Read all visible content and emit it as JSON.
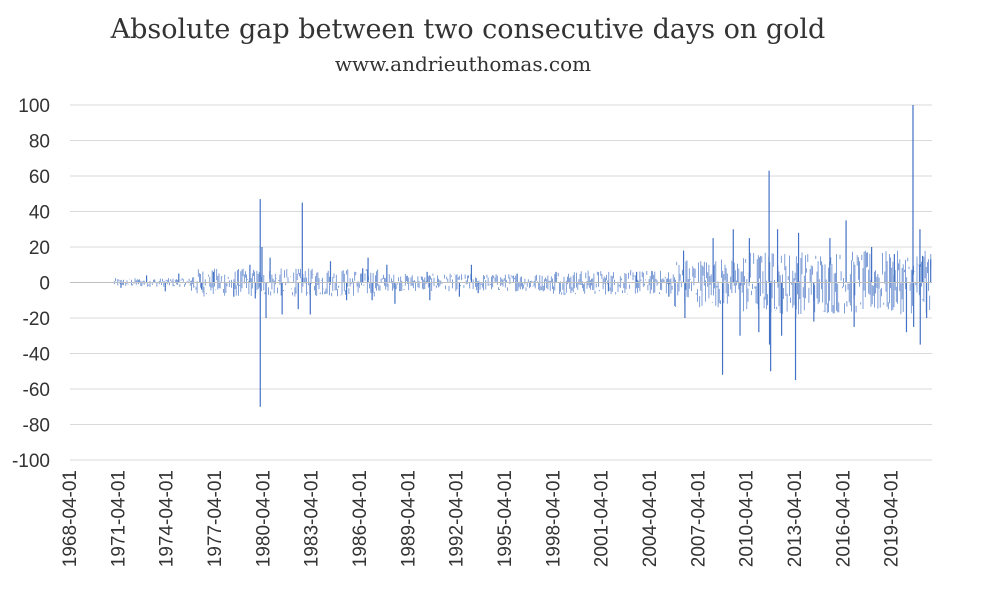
{
  "chart_data": {
    "type": "line",
    "title": "Absolute gap between two consecutive days on gold",
    "subtitle": "www.andrieuthomas.com",
    "xlabel": "",
    "ylabel": "",
    "ylim": [
      -100,
      100
    ],
    "yticks": [
      100,
      80,
      60,
      40,
      20,
      0,
      -20,
      -40,
      -60,
      -80,
      -100
    ],
    "ytick_labels": [
      "100",
      "80",
      "60",
      "40",
      "20",
      "0",
      "-20",
      "-40",
      "-60",
      "-80",
      "-100"
    ],
    "xlim": [
      "1968-04-01",
      "2021-10-01"
    ],
    "xtick_labels": [
      "1968-04-01",
      "1971-04-01",
      "1974-04-01",
      "1977-04-01",
      "1980-04-01",
      "1983-04-01",
      "1986-04-01",
      "1989-04-01",
      "1992-04-01",
      "1995-04-01",
      "1998-04-01",
      "2001-04-01",
      "2004-04-01",
      "2007-04-01",
      "2010-04-01",
      "2013-04-01",
      "2016-04-01",
      "2019-04-01"
    ],
    "grid": true,
    "legend": "none",
    "series": [
      {
        "color": "#4472c4",
        "x": [
          "1971-06-01",
          "1973-01-01",
          "1974-03-01",
          "1975-01-01",
          "1976-06-01",
          "1977-03-01",
          "1978-06-01",
          "1979-06-01",
          "1979-10-01",
          "1980-01-21",
          "1980-01-22",
          "1980-03-01",
          "1980-06-01",
          "1980-09-01",
          "1981-06-01",
          "1982-06-01",
          "1982-09-01",
          "1983-03-01",
          "1984-06-01",
          "1985-06-01",
          "1986-06-01",
          "1986-10-01",
          "1987-01-01",
          "1987-12-01",
          "1988-06-01",
          "1990-06-01",
          "1990-08-01",
          "1992-06-01",
          "1993-03-01",
          "1993-08-01",
          "1996-01-01",
          "1998-06-01",
          "2001-09-01",
          "2003-06-01",
          "2005-06-01",
          "2006-05-01",
          "2006-06-01",
          "2008-03-01",
          "2008-10-01",
          "2009-06-01",
          "2009-11-01",
          "2010-06-01",
          "2011-01-01",
          "2011-08-22",
          "2011-09-01",
          "2011-09-26",
          "2012-03-01",
          "2012-06-01",
          "2013-04-12",
          "2013-04-15",
          "2013-06-20",
          "2014-06-01",
          "2015-06-01",
          "2016-06-01",
          "2016-12-01",
          "2018-01-01",
          "2019-06-01",
          "2020-03-01",
          "2020-07-27",
          "2020-08-11",
          "2021-01-01",
          "2021-01-08",
          "2021-03-01",
          "2021-06-01",
          "2021-09-01"
        ],
        "values": [
          -3,
          4,
          -5,
          5,
          -4,
          6,
          -8,
          10,
          -9,
          47,
          -70,
          20,
          -20,
          14,
          -18,
          -15,
          45,
          -18,
          12,
          -10,
          8,
          14,
          -10,
          10,
          -12,
          6,
          -10,
          -8,
          10,
          -6,
          5,
          6,
          -5,
          6,
          -8,
          18,
          -20,
          25,
          -52,
          30,
          -30,
          25,
          -28,
          63,
          -35,
          -50,
          30,
          -30,
          -55,
          -20,
          28,
          -22,
          25,
          35,
          -25,
          20,
          16,
          -28,
          100,
          -25,
          30,
          -35,
          15,
          -20,
          13
        ]
      }
    ]
  }
}
